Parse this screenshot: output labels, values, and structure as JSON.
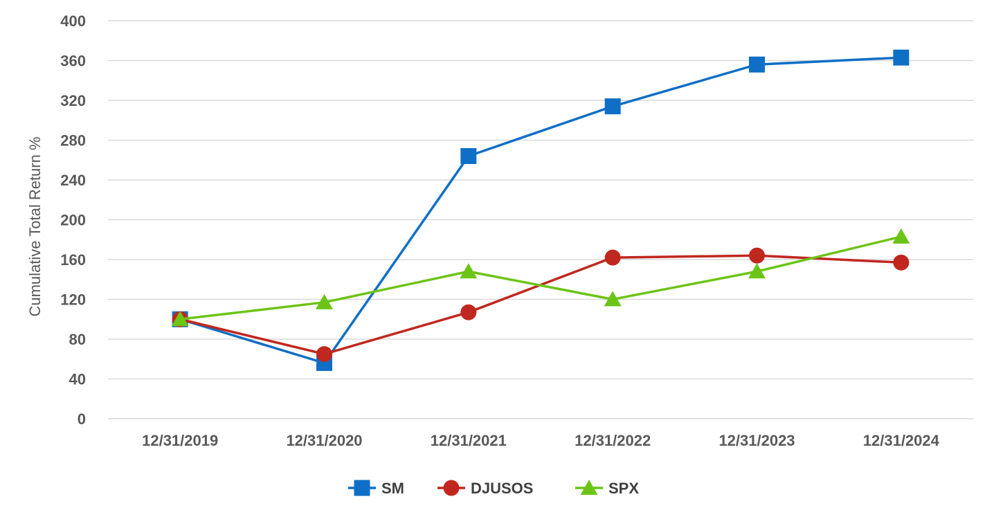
{
  "chart_data": {
    "type": "line",
    "title": "",
    "xlabel": "",
    "ylabel": "Cumulative Total Return %",
    "ylim": [
      0,
      400
    ],
    "yticks": [
      0,
      40,
      80,
      120,
      160,
      200,
      240,
      280,
      320,
      360,
      400
    ],
    "categories": [
      "12/31/2019",
      "12/31/2020",
      "12/31/2021",
      "12/31/2022",
      "12/31/2023",
      "12/31/2024"
    ],
    "grid": true,
    "legend_position": "bottom",
    "series": [
      {
        "name": "SM",
        "marker": "square",
        "color": "#0F6FC6",
        "values": [
          100,
          56,
          264,
          314,
          356,
          363
        ]
      },
      {
        "name": "DJUSOS",
        "marker": "circle",
        "color": "#C0271E",
        "values": [
          100,
          65,
          107,
          162,
          164,
          157
        ]
      },
      {
        "name": "SPX",
        "marker": "triangle",
        "color": "#6CC417",
        "values": [
          100,
          117,
          148,
          120,
          148,
          183
        ]
      }
    ]
  }
}
